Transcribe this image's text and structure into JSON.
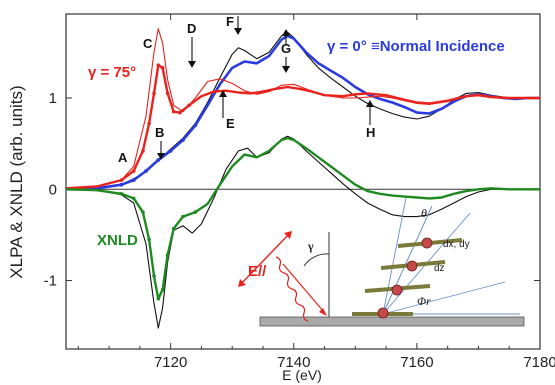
{
  "chart_data": {
    "type": "line",
    "title": "",
    "xlabel": "E (eV)",
    "ylabel": "XLPA & XNLD (arb. units)",
    "xlim": [
      7103,
      7180
    ],
    "ylim": [
      -1.75,
      1.92
    ],
    "x_ticks": [
      "7120",
      "7140",
      "7160",
      "7180"
    ],
    "y_ticks": [
      "0",
      "1",
      "-1"
    ],
    "x_tick_values": [
      7120,
      7140,
      7160,
      7180
    ],
    "y_tick_values": [
      0,
      1,
      -1
    ],
    "grid": false,
    "legend_labels": {
      "normal": "γ = 0° ≡Normal Incidence",
      "grazing": "γ = 75°",
      "xnld": "XNLD"
    },
    "colors": {
      "blue": "#2a3ce0",
      "red": "#e8231c",
      "green": "#1f8a1f",
      "theory": "#111111"
    },
    "annotations": [
      "A",
      "B",
      "C",
      "D",
      "E",
      "F",
      "G",
      "H"
    ],
    "inset": {
      "field_label": "E//",
      "angle_gamma": "γ",
      "angle_theta": "θ",
      "angle_phi": "Φr",
      "label_dxdy": "dx, dy",
      "label_dz": "dz"
    },
    "series": [
      {
        "name": "γ = 0° ≡Normal Incidence",
        "role": "exp_blue",
        "x": [
          7103,
          7108,
          7112,
          7114,
          7116,
          7118,
          7120,
          7122,
          7124,
          7126,
          7128,
          7130,
          7132,
          7134,
          7136,
          7138,
          7139,
          7140,
          7142,
          7144,
          7146,
          7148,
          7150,
          7152,
          7154,
          7156,
          7158,
          7160,
          7162,
          7164,
          7166,
          7168,
          7170,
          7172,
          7174,
          7176,
          7178,
          7180
        ],
        "y": [
          0,
          0.01,
          0.05,
          0.1,
          0.2,
          0.32,
          0.42,
          0.54,
          0.7,
          0.92,
          1.15,
          1.33,
          1.4,
          1.38,
          1.46,
          1.64,
          1.68,
          1.65,
          1.5,
          1.38,
          1.3,
          1.22,
          1.12,
          1.04,
          0.99,
          0.95,
          0.9,
          0.84,
          0.83,
          0.88,
          0.96,
          1.02,
          1.04,
          1.02,
          1.0,
          0.99,
          1.0,
          1.0
        ]
      },
      {
        "name": "γ = 75°",
        "role": "exp_red",
        "x": [
          7103,
          7108,
          7112,
          7114,
          7115.5,
          7116.5,
          7117.3,
          7118,
          7118.7,
          7119.5,
          7120.5,
          7121.5,
          7123,
          7125,
          7127,
          7129,
          7131,
          7133,
          7135,
          7137,
          7139,
          7141,
          7143,
          7145,
          7148,
          7150,
          7152,
          7155,
          7158,
          7160,
          7162,
          7165,
          7168,
          7170,
          7172,
          7175,
          7178,
          7180
        ],
        "y": [
          0.01,
          0.03,
          0.1,
          0.2,
          0.42,
          0.72,
          1.05,
          1.36,
          1.33,
          1.05,
          0.85,
          0.84,
          0.92,
          1.02,
          1.07,
          1.08,
          1.06,
          1.05,
          1.07,
          1.1,
          1.12,
          1.1,
          1.07,
          1.03,
          1.02,
          1.04,
          1.05,
          1.03,
          0.98,
          0.95,
          0.94,
          0.97,
          1.02,
          1.03,
          1.01,
          1.0,
          1.0,
          1.0
        ]
      },
      {
        "name": "XNLD",
        "role": "exp_green",
        "x": [
          7103,
          7108,
          7112,
          7114,
          7115.5,
          7116.5,
          7117.3,
          7118,
          7118.7,
          7119.5,
          7120.5,
          7122,
          7124,
          7126,
          7128,
          7130,
          7132,
          7134,
          7136,
          7138,
          7139,
          7140,
          7142,
          7144,
          7146,
          7148,
          7150,
          7152,
          7154,
          7156,
          7158,
          7160,
          7162,
          7164,
          7166,
          7168,
          7170,
          7172,
          7175,
          7178,
          7180
        ],
        "y": [
          0,
          -0.01,
          -0.05,
          -0.1,
          -0.25,
          -0.55,
          -0.95,
          -1.2,
          -1.1,
          -0.72,
          -0.43,
          -0.3,
          -0.25,
          -0.16,
          0.05,
          0.25,
          0.38,
          0.35,
          0.42,
          0.54,
          0.56,
          0.54,
          0.45,
          0.35,
          0.25,
          0.15,
          0.05,
          -0.02,
          -0.05,
          -0.07,
          -0.08,
          -0.09,
          -0.1,
          -0.09,
          -0.05,
          -0.02,
          0.0,
          0.01,
          0.0,
          0.0,
          0.0
        ]
      },
      {
        "role": "theory_blue",
        "x": [
          7103,
          7108,
          7112,
          7115,
          7118,
          7120,
          7122,
          7124,
          7126,
          7128,
          7130,
          7131,
          7132,
          7134,
          7136,
          7138,
          7139,
          7140,
          7142,
          7144,
          7146,
          7148,
          7150,
          7152,
          7154,
          7156,
          7158,
          7160,
          7162,
          7164,
          7166,
          7168,
          7170,
          7172,
          7175,
          7178,
          7180
        ],
        "y": [
          0,
          0.01,
          0.05,
          0.15,
          0.32,
          0.44,
          0.56,
          0.72,
          0.95,
          1.22,
          1.48,
          1.55,
          1.52,
          1.43,
          1.5,
          1.68,
          1.72,
          1.66,
          1.48,
          1.33,
          1.22,
          1.12,
          1.02,
          0.94,
          0.88,
          0.83,
          0.79,
          0.77,
          0.8,
          0.88,
          0.98,
          1.05,
          1.06,
          1.03,
          1.0,
          1.0,
          1.0
        ]
      },
      {
        "role": "theory_red",
        "x": [
          7103,
          7108,
          7112,
          7114,
          7116,
          7117.3,
          7118,
          7118.7,
          7119.5,
          7120.5,
          7122,
          7124,
          7126,
          7128,
          7130,
          7132,
          7134,
          7136,
          7138,
          7140,
          7142,
          7144,
          7146,
          7148,
          7150,
          7152,
          7154,
          7156,
          7158,
          7160,
          7162,
          7165,
          7168,
          7170,
          7172,
          7175,
          7178,
          7180
        ],
        "y": [
          0.01,
          0.03,
          0.1,
          0.25,
          0.8,
          1.5,
          1.76,
          1.6,
          1.2,
          0.92,
          0.85,
          1.0,
          1.18,
          1.21,
          1.16,
          1.08,
          1.04,
          1.07,
          1.14,
          1.15,
          1.1,
          1.05,
          1.02,
          1.0,
          1.0,
          1.01,
          1.02,
          1.0,
          0.97,
          0.94,
          0.93,
          0.96,
          1.02,
          1.04,
          1.02,
          1.0,
          1.0,
          1.0
        ]
      },
      {
        "role": "theory_green",
        "x": [
          7103,
          7108,
          7112,
          7114,
          7116,
          7117.3,
          7118,
          7118.7,
          7119.5,
          7120.5,
          7122,
          7123.5,
          7125,
          7127,
          7129,
          7131,
          7132.5,
          7134,
          7136,
          7138,
          7139,
          7140,
          7142,
          7144,
          7146,
          7148,
          7150,
          7152,
          7154,
          7156,
          7158,
          7160,
          7162,
          7164,
          7166,
          7168,
          7170,
          7172,
          7175,
          7178,
          7180
        ],
        "y": [
          0,
          -0.01,
          -0.06,
          -0.15,
          -0.6,
          -1.25,
          -1.52,
          -1.3,
          -0.8,
          -0.45,
          -0.4,
          -0.48,
          -0.38,
          -0.1,
          0.22,
          0.42,
          0.45,
          0.35,
          0.4,
          0.55,
          0.58,
          0.55,
          0.42,
          0.3,
          0.18,
          0.06,
          -0.05,
          -0.15,
          -0.22,
          -0.28,
          -0.3,
          -0.3,
          -0.28,
          -0.22,
          -0.15,
          -0.08,
          -0.03,
          0.0,
          0.0,
          0.0,
          0.0
        ]
      }
    ]
  }
}
